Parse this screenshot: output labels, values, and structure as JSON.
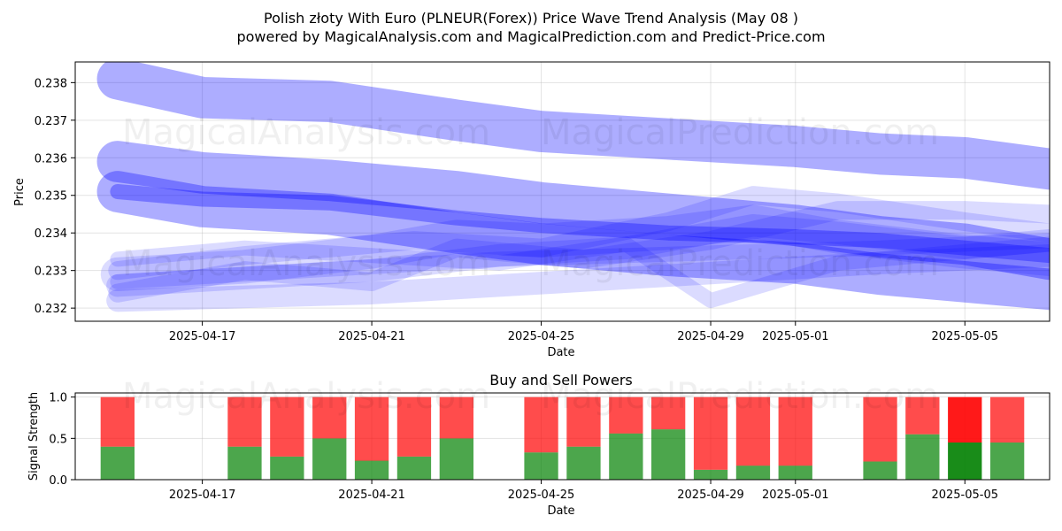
{
  "title_line1": "Polish złoty With Euro (PLNEUR(Forex)) Price Wave Trend Analysis (May 08 )",
  "title_line2": "powered by MagicalAnalysis.com and MagicalPrediction.com and Predict-Price.com",
  "watermarks": [
    "MagicalAnalysis.com",
    "MagicalPrediction.com"
  ],
  "colors": {
    "band": "#0000ff",
    "buy": "#008000",
    "sell": "#ff0000"
  },
  "chart_data": [
    {
      "type": "area",
      "xlabel": "Date",
      "ylabel": "Price",
      "x_ticks": [
        "2025-04-17",
        "2025-04-21",
        "2025-04-25",
        "2025-04-29",
        "2025-05-01",
        "2025-05-05"
      ],
      "y_ticks": [
        "0.232",
        "0.233",
        "0.234",
        "0.235",
        "0.236",
        "0.237",
        "0.238"
      ],
      "xlim": [
        "2025-04-14",
        "2025-05-07"
      ],
      "ylim": [
        0.23165,
        0.23855
      ],
      "grid": true,
      "bands": [
        {
          "x": [
            "2025-04-15",
            "2025-04-17",
            "2025-04-20",
            "2025-04-23",
            "2025-04-25",
            "2025-04-28",
            "2025-05-01",
            "2025-05-03",
            "2025-05-05",
            "2025-05-07"
          ],
          "y": [
            0.2381,
            0.2376,
            0.2375,
            0.237,
            0.2367,
            0.2365,
            0.2363,
            0.2361,
            0.236,
            0.2357
          ],
          "width": 0.0011,
          "opacity": 0.32
        },
        {
          "x": [
            "2025-04-15",
            "2025-04-17",
            "2025-04-20",
            "2025-04-23",
            "2025-04-25",
            "2025-04-28",
            "2025-05-01",
            "2025-05-03",
            "2025-05-05",
            "2025-05-07"
          ],
          "y": [
            0.2359,
            0.2356,
            0.2354,
            0.2351,
            0.2348,
            0.2345,
            0.2342,
            0.2339,
            0.2337,
            0.2333
          ],
          "width": 0.0011,
          "opacity": 0.32
        },
        {
          "x": [
            "2025-04-15",
            "2025-04-17",
            "2025-04-20",
            "2025-04-23",
            "2025-04-25",
            "2025-04-28",
            "2025-05-01",
            "2025-05-03",
            "2025-05-05",
            "2025-05-07"
          ],
          "y": [
            0.2351,
            0.2347,
            0.2345,
            0.234,
            0.2337,
            0.2334,
            0.2332,
            0.2329,
            0.2327,
            0.2325
          ],
          "width": 0.0011,
          "opacity": 0.32
        },
        {
          "x": [
            "2025-04-15",
            "2025-04-17",
            "2025-04-20",
            "2025-04-23",
            "2025-04-25",
            "2025-04-28",
            "2025-05-01",
            "2025-05-03",
            "2025-05-05",
            "2025-05-07"
          ],
          "y": [
            0.2351,
            0.2349,
            0.2348,
            0.2344,
            0.2342,
            0.234,
            0.2339,
            0.2338,
            0.2336,
            0.2334
          ],
          "width": 0.0004,
          "opacity": 0.32
        },
        {
          "x": [
            "2025-04-15",
            "2025-04-18",
            "2025-04-21",
            "2025-04-23",
            "2025-04-25",
            "2025-04-28",
            "2025-04-30",
            "2025-05-02",
            "2025-05-05",
            "2025-05-07"
          ],
          "y": [
            0.2329,
            0.2331,
            0.2335,
            0.2339,
            0.2338,
            0.234,
            0.2343,
            0.2339,
            0.2335,
            0.2333
          ],
          "width": 0.0009,
          "opacity": 0.14
        },
        {
          "x": [
            "2025-04-15",
            "2025-04-18",
            "2025-04-21",
            "2025-04-24",
            "2025-04-27",
            "2025-04-30",
            "2025-05-02",
            "2025-05-05",
            "2025-05-07"
          ],
          "y": [
            0.2326,
            0.2328,
            0.233,
            0.2334,
            0.2336,
            0.2342,
            0.234,
            0.2336,
            0.2338
          ],
          "width": 0.0006,
          "opacity": 0.14
        },
        {
          "x": [
            "2025-04-15",
            "2025-04-18",
            "2025-04-21",
            "2025-04-23",
            "2025-04-26",
            "2025-04-29",
            "2025-05-02",
            "2025-05-05",
            "2025-05-07"
          ],
          "y": [
            0.2324,
            0.233,
            0.2327,
            0.2336,
            0.2333,
            0.2338,
            0.2346,
            0.2346,
            0.2345
          ],
          "width": 0.0005,
          "opacity": 0.14
        },
        {
          "x": [
            "2025-04-15",
            "2025-04-18",
            "2025-04-21",
            "2025-04-24",
            "2025-04-27",
            "2025-04-30",
            "2025-05-03",
            "2025-05-05",
            "2025-05-07"
          ],
          "y": [
            0.2322,
            0.2323,
            0.2324,
            0.2326,
            0.2328,
            0.233,
            0.2332,
            0.2333,
            0.2334
          ],
          "width": 0.0006,
          "opacity": 0.14
        },
        {
          "x": [
            "2025-04-15",
            "2025-04-18",
            "2025-04-22",
            "2025-04-25",
            "2025-04-28",
            "2025-04-30",
            "2025-05-02",
            "2025-05-05",
            "2025-05-07"
          ],
          "y": [
            0.233,
            0.2334,
            0.2338,
            0.2336,
            0.2343,
            0.235,
            0.2348,
            0.2343,
            0.234
          ],
          "width": 0.0005,
          "opacity": 0.14
        },
        {
          "x": [
            "2025-04-15",
            "2025-04-18",
            "2025-04-21",
            "2025-04-24",
            "2025-04-27",
            "2025-04-29",
            "2025-05-02",
            "2025-05-05",
            "2025-05-07"
          ],
          "y": [
            0.2333,
            0.2336,
            0.2334,
            0.2332,
            0.2337,
            0.2322,
            0.2332,
            0.2335,
            0.2337
          ],
          "width": 0.0004,
          "opacity": 0.14
        },
        {
          "x": [
            "2025-04-15",
            "2025-04-18",
            "2025-04-21",
            "2025-04-24",
            "2025-04-27",
            "2025-04-30",
            "2025-05-03",
            "2025-05-05",
            "2025-05-07"
          ],
          "y": [
            0.2327,
            0.2329,
            0.2331,
            0.2333,
            0.2334,
            0.2335,
            0.2336,
            0.2337,
            0.2338
          ],
          "width": 0.0004,
          "opacity": 0.14
        }
      ]
    },
    {
      "type": "bar",
      "title": "Buy and Sell Powers",
      "xlabel": "Date",
      "ylabel": "Signal Strength",
      "x_ticks": [
        "2025-04-17",
        "2025-04-21",
        "2025-04-25",
        "2025-04-29",
        "2025-05-01",
        "2025-05-05"
      ],
      "y_ticks": [
        "0.0",
        "0.5",
        "1.0"
      ],
      "xlim": [
        "2025-04-14",
        "2025-05-07"
      ],
      "ylim": [
        0,
        1.05
      ],
      "grid": true,
      "categories": [
        "2025-04-15",
        "2025-04-18",
        "2025-04-19",
        "2025-04-20",
        "2025-04-21",
        "2025-04-22",
        "2025-04-23",
        "2025-04-25",
        "2025-04-26",
        "2025-04-27",
        "2025-04-28",
        "2025-04-29",
        "2025-04-30",
        "2025-05-01",
        "2025-05-03",
        "2025-05-04",
        "2025-05-05",
        "2025-05-06"
      ],
      "series": [
        {
          "values": [
            0.4,
            0.4,
            0.28,
            0.5,
            0.23,
            0.28,
            0.5,
            0.33,
            0.4,
            0.56,
            0.61,
            0.12,
            0.17,
            0.17,
            0.22,
            0.55,
            0.45,
            0.45
          ]
        },
        {
          "values": [
            0.6,
            0.6,
            0.72,
            0.5,
            0.77,
            0.72,
            0.5,
            0.67,
            0.6,
            0.44,
            0.39,
            0.88,
            0.83,
            0.83,
            0.78,
            0.45,
            0.55,
            0.55
          ]
        }
      ],
      "highlight_category": "2025-05-05"
    }
  ]
}
